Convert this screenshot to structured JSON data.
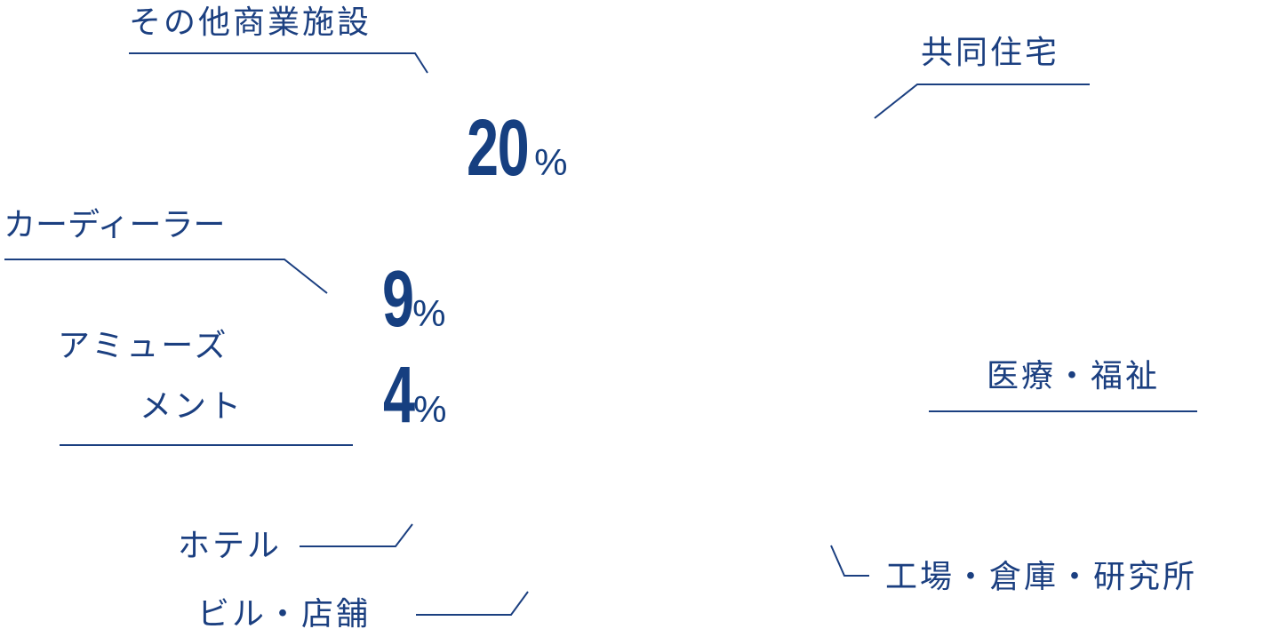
{
  "chart_data": {
    "type": "pie",
    "color": "#1b3f80",
    "slices": [
      {
        "label": "その他商業施設",
        "value": 20,
        "value_label": "20",
        "unit": "%"
      },
      {
        "label": "カーディーラー",
        "value": 9,
        "value_label": "9",
        "unit": "%"
      },
      {
        "label_lines": [
          "アミューズ",
          "メント"
        ],
        "value": 4,
        "value_label": "4",
        "unit": "%"
      },
      {
        "label": "共同住宅"
      },
      {
        "label": "医療・福祉"
      },
      {
        "label": "工場・倉庫・研究所"
      },
      {
        "label": "ビル・店舗"
      },
      {
        "label": "ホテル"
      }
    ]
  }
}
